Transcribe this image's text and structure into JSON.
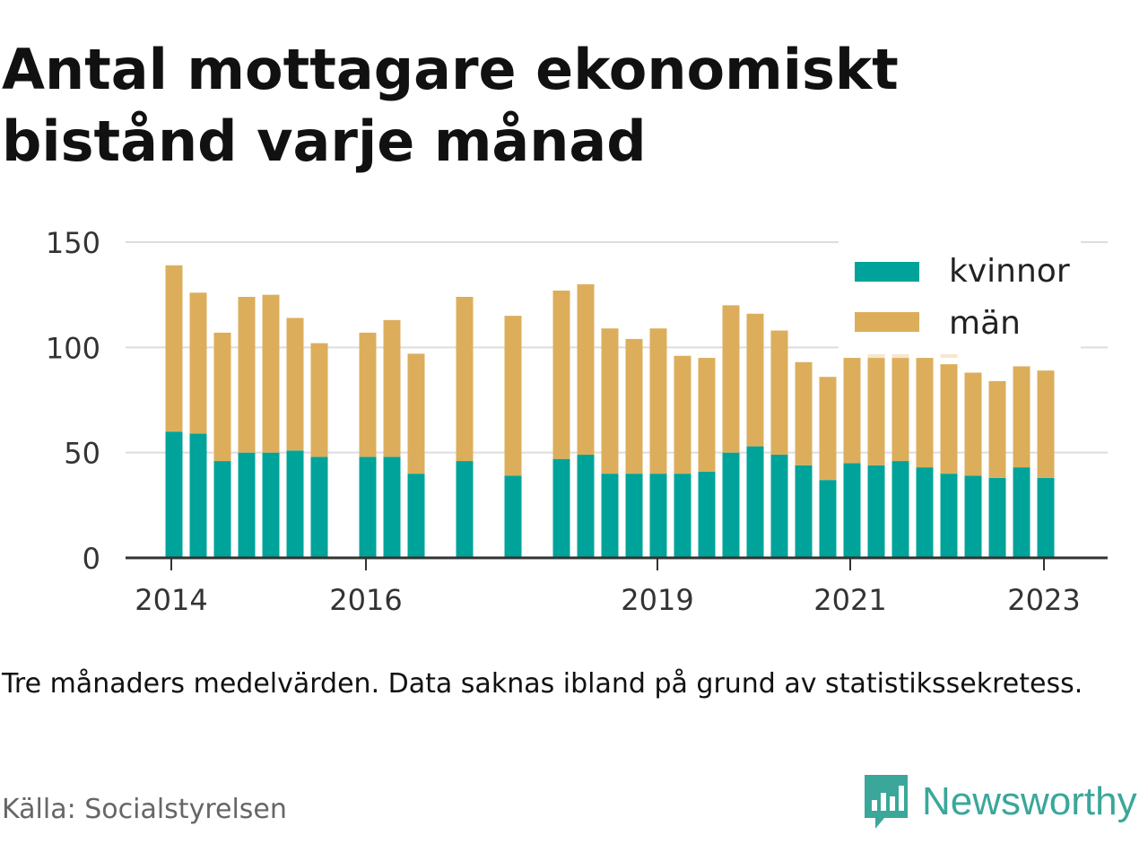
{
  "title": "Antal mottagare ekonomiskt bistånd varje månad",
  "note": "Tre månaders medelvärden. Data saknas ibland på grund av statistikssekretess.",
  "source": "Källa: Socialstyrelsen",
  "brand": {
    "name": "Newsworthy",
    "icon": "newsworthy-logo-icon"
  },
  "colors": {
    "kvinnor": "#00a39a",
    "man": "#dcae5c",
    "grid": "#dddddd",
    "axis": "#333333"
  },
  "chart_data": {
    "type": "bar",
    "stacked": true,
    "x_unit": "date",
    "x_ticks": [
      "2014",
      "2016",
      "2019",
      "2021",
      "2023"
    ],
    "ylim": [
      0,
      150
    ],
    "y_ticks": [
      0,
      50,
      100,
      150
    ],
    "grid": true,
    "legend_position": "top-right",
    "x": [
      "2014-04",
      "2014-07",
      "2014-10",
      "2015-01",
      "2015-04",
      "2015-07",
      "2015-10",
      "2016-04",
      "2016-07",
      "2016-10",
      "2017-04",
      "2017-10",
      "2018-04",
      "2018-07",
      "2018-10",
      "2019-01",
      "2019-04",
      "2019-07",
      "2019-10",
      "2020-01",
      "2020-04",
      "2020-07",
      "2020-10",
      "2021-01",
      "2021-04",
      "2021-07",
      "2021-10",
      "2022-01",
      "2022-04",
      "2022-07",
      "2022-10",
      "2023-01",
      "2023-04"
    ],
    "series": [
      {
        "name": "kvinnor",
        "values": [
          60,
          59,
          46,
          50,
          50,
          51,
          48,
          48,
          48,
          40,
          46,
          39,
          47,
          49,
          40,
          40,
          40,
          40,
          41,
          50,
          53,
          49,
          44,
          37,
          45,
          44,
          46,
          43,
          40,
          39,
          38,
          43,
          38
        ]
      },
      {
        "name": "män",
        "values": [
          79,
          67,
          61,
          74,
          75,
          63,
          54,
          59,
          65,
          57,
          78,
          76,
          80,
          81,
          69,
          64,
          69,
          56,
          54,
          70,
          63,
          59,
          49,
          49,
          50,
          51,
          49,
          52,
          52,
          49,
          46,
          48,
          51
        ]
      }
    ],
    "faded_overlay": [
      {
        "x": "2021-07",
        "value": 105
      },
      {
        "x": "2021-10",
        "value": 103
      },
      {
        "x": "2022-04",
        "value": 101
      }
    ]
  }
}
